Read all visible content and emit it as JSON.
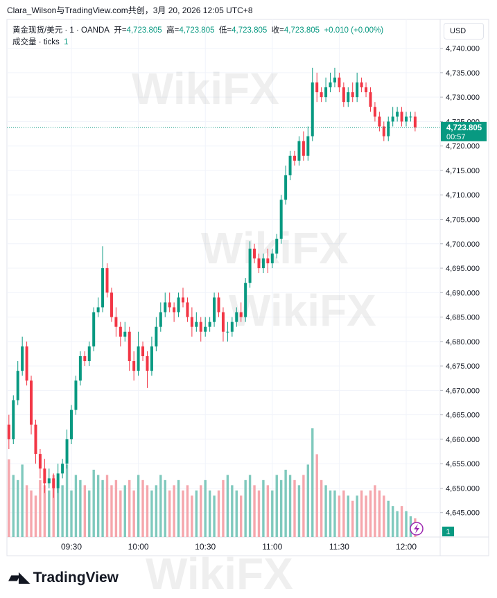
{
  "header": {
    "text": "Clara_Wilson与TradingView.com共创，3月 20, 2026 12:05 UTC+8"
  },
  "logo": "TradingView",
  "chart_data": {
    "type": "candlestick",
    "legend": {
      "symbol": "黄金现货/美元 · 1 · OANDA",
      "open_label": "开=",
      "open": "4,723.805",
      "high_label": "高=",
      "high": "4,723.805",
      "low_label": "低=",
      "low": "4,723.805",
      "close_label": "收=",
      "close": "4,723.805",
      "change": "+0.010 (+0.00%)",
      "volume_label": "成交量 · ticks"
    },
    "current_volume": 1,
    "currency": "USD",
    "watermark": "WikiFX",
    "last_price": {
      "value": 4723.805,
      "label": "4,723.805"
    },
    "countdown": "00:57",
    "up_color": "#089981",
    "down_color": "#f23645",
    "volume_up_color": "#7fc9bd",
    "volume_down_color": "#f5a6ac",
    "grid": true,
    "ylim": [
      4640,
      4745.9
    ],
    "yticks": [
      {
        "value": 4645,
        "label": "4,645.000"
      },
      {
        "value": 4650,
        "label": "4,650.000"
      },
      {
        "value": 4655,
        "label": "4,655.000"
      },
      {
        "value": 4660,
        "label": "4,660.000"
      },
      {
        "value": 4665,
        "label": "4,665.000"
      },
      {
        "value": 4670,
        "label": "4,670.000"
      },
      {
        "value": 4675,
        "label": "4,675.000"
      },
      {
        "value": 4680,
        "label": "4,680.000"
      },
      {
        "value": 4685,
        "label": "4,685.000"
      },
      {
        "value": 4690,
        "label": "4,690.000"
      },
      {
        "value": 4695,
        "label": "4,695.000"
      },
      {
        "value": 4700,
        "label": "4,700.000"
      },
      {
        "value": 4705,
        "label": "4,705.000"
      },
      {
        "value": 4710,
        "label": "4,710.000"
      },
      {
        "value": 4715,
        "label": "4,715.000"
      },
      {
        "value": 4720,
        "label": "4,720.000"
      },
      {
        "value": 4725,
        "label": "4,725.000"
      },
      {
        "value": 4730,
        "label": "4,730.000"
      },
      {
        "value": 4735,
        "label": "4,735.000"
      },
      {
        "value": 4740,
        "label": "4,740.000"
      }
    ],
    "y2lim": [
      0,
      500
    ],
    "categories": [
      null,
      null,
      null,
      null,
      null,
      null,
      null,
      null,
      null,
      null,
      null,
      null,
      null,
      null,
      "09:30",
      null,
      null,
      null,
      null,
      null,
      null,
      null,
      null,
      null,
      null,
      null,
      null,
      null,
      null,
      "10:00",
      null,
      null,
      null,
      null,
      null,
      null,
      null,
      null,
      null,
      null,
      null,
      null,
      null,
      null,
      "10:30",
      null,
      null,
      null,
      null,
      null,
      null,
      null,
      null,
      null,
      null,
      null,
      null,
      null,
      null,
      "11:00",
      null,
      null,
      null,
      null,
      null,
      null,
      null,
      null,
      null,
      null,
      null,
      null,
      null,
      null,
      "11:30",
      null,
      null,
      null,
      null,
      null,
      null,
      null,
      null,
      null,
      null,
      null,
      null,
      null,
      null,
      "12:00",
      null,
      null
    ],
    "open": [
      4663,
      4660,
      4668,
      4674,
      4679,
      4672,
      4663,
      4657,
      4654,
      4651,
      4652,
      4650,
      4653,
      4655,
      4660,
      4666,
      4672,
      4677,
      4676,
      4679,
      4686,
      4687,
      4695,
      4690,
      4685,
      4683,
      4681,
      4682,
      4676,
      4674,
      4679,
      4677,
      4674,
      4679,
      4683,
      4686,
      4688,
      4687,
      4686,
      4689,
      4688,
      4685,
      4683,
      4684,
      4682,
      4683,
      4684,
      4689,
      4686,
      4682,
      4682,
      4684,
      4686,
      4685,
      4692,
      4699,
      4697,
      4695,
      4697,
      4696,
      4698,
      4701,
      4709,
      4714,
      4718,
      4717,
      4721,
      4718,
      4722,
      4733,
      4731,
      4730,
      4732,
      4733,
      4734,
      4732,
      4729,
      4731,
      4730,
      4733,
      4732,
      4731,
      4728,
      4726,
      4724,
      4722,
      4725,
      4726,
      4727,
      4725,
      4726,
      4726
    ],
    "high": [
      4665,
      4669,
      4676,
      4681,
      4680,
      4673,
      4664,
      4658,
      4656,
      4654,
      4653,
      4655,
      4656,
      4662,
      4667,
      4673,
      4678,
      4678,
      4680,
      4687,
      4689,
      4699.5,
      4696,
      4691,
      4687,
      4684,
      4684,
      4683,
      4678,
      4682,
      4680,
      4678,
      4681,
      4685,
      4688,
      4690,
      4690,
      4688,
      4690,
      4691,
      4689,
      4687,
      4686,
      4685,
      4685,
      4685,
      4690,
      4690,
      4687,
      4684,
      4685,
      4687,
      4688,
      4693,
      4700.5,
      4700,
      4698,
      4698,
      4699,
      4699,
      4702,
      4710,
      4716,
      4719,
      4719,
      4722,
      4723,
      4724,
      4736,
      4735,
      4732,
      4734,
      4735,
      4736,
      4735,
      4733,
      4732,
      4733,
      4735,
      4734,
      4733,
      4732,
      4729,
      4727,
      4725,
      4726,
      4728,
      4728,
      4728,
      4727,
      4727,
      4727
    ],
    "low": [
      4658,
      4659,
      4667,
      4673,
      4671,
      4661,
      4655,
      4652,
      4649,
      4650,
      4648,
      4649,
      4652,
      4654,
      4659,
      4665,
      4671,
      4675,
      4675,
      4678,
      4685,
      4686,
      4689,
      4684,
      4681,
      4679,
      4680,
      4674,
      4672,
      4673,
      4676,
      4670.5,
      4673,
      4678,
      4682,
      4685,
      4686,
      4684,
      4685,
      4687,
      4684,
      4681,
      4682,
      4680,
      4681,
      4682,
      4683,
      4685,
      4680,
      4680,
      4681,
      4683,
      4684,
      4684,
      4691,
      4696,
      4694,
      4694,
      4694,
      4695,
      4697,
      4700,
      4708,
      4713,
      4716,
      4716,
      4717,
      4717,
      4721,
      4729,
      4729,
      4729,
      4731,
      4732,
      4731,
      4728,
      4728,
      4729,
      4729,
      4731,
      4730,
      4727,
      4725,
      4723,
      4721,
      4721,
      4724,
      4725,
      4724,
      4724,
      4725,
      4723
    ],
    "close": [
      4660,
      4668,
      4674,
      4679,
      4672,
      4663,
      4657,
      4654,
      4651,
      4652,
      4650,
      4653,
      4655,
      4660,
      4666,
      4672,
      4677,
      4676,
      4679,
      4686,
      4687,
      4695,
      4690,
      4685,
      4683,
      4681,
      4682,
      4676,
      4674,
      4679,
      4677,
      4674,
      4679,
      4683,
      4686,
      4688,
      4687,
      4686,
      4689,
      4688,
      4685,
      4683,
      4684,
      4682,
      4683,
      4684,
      4689,
      4686,
      4682,
      4682,
      4684,
      4686,
      4685,
      4692,
      4699,
      4697,
      4695,
      4697,
      4696,
      4698,
      4701,
      4709,
      4714,
      4718,
      4717,
      4721,
      4718,
      4722,
      4733,
      4731,
      4730,
      4732,
      4733,
      4734,
      4732,
      4729,
      4731,
      4730,
      4733,
      4732,
      4731,
      4728,
      4726,
      4724,
      4722,
      4725,
      4726,
      4727,
      4725,
      4726,
      4726,
      4723.805
    ],
    "volume": [
      75,
      60,
      55,
      70,
      50,
      45,
      40,
      55,
      50,
      45,
      60,
      55,
      50,
      70,
      45,
      60,
      55,
      50,
      45,
      65,
      60,
      55,
      60,
      50,
      55,
      45,
      50,
      55,
      45,
      60,
      55,
      50,
      45,
      50,
      60,
      55,
      45,
      50,
      55,
      45,
      50,
      40,
      45,
      50,
      55,
      45,
      40,
      45,
      55,
      60,
      50,
      45,
      40,
      55,
      60,
      50,
      45,
      55,
      50,
      45,
      60,
      55,
      65,
      60,
      55,
      50,
      60,
      70,
      105,
      80,
      55,
      50,
      45,
      45,
      40,
      45,
      40,
      35,
      40,
      45,
      40,
      45,
      50,
      45,
      40,
      35,
      30,
      25,
      30,
      25,
      20,
      18
    ]
  }
}
